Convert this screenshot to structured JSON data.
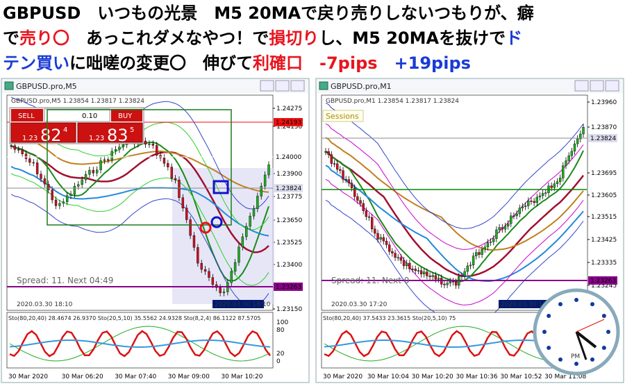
{
  "header": {
    "lines": [
      [
        {
          "text": "GBPUSD　いつもの光景　M5 20MAで戻り売りしないつもりが、癖"
        }
      ],
      [
        {
          "text": "で"
        },
        {
          "text": "売り〇"
        },
        {
          "text": "　あっこれダメなやつ！で"
        },
        {
          "text": "損切り"
        },
        {
          "text": "し、M5 20MAを抜けで"
        },
        {
          "text": "ド"
        }
      ],
      [
        {
          "text": "テン買い"
        },
        {
          "text": "に咄嗟の変更〇　伸びて"
        },
        {
          "text": "利確口"
        },
        {
          "text": "　"
        },
        {
          "text": "-7pips"
        },
        {
          "text": "　"
        },
        {
          "text": "+19pips"
        }
      ]
    ]
  },
  "left": {
    "title": "GBPUSD.pro,M5",
    "info": "GBPUSD.pro,M5 1.23854 1.23817 1.23824",
    "trade": {
      "sell": "SELL",
      "buy": "BUY",
      "lot": "0.10",
      "sell_big": "1.23",
      "sell_price": "82",
      "sell_frac": "4",
      "buy_big": "1.23",
      "buy_price": "83",
      "buy_frac": "5"
    },
    "price_ticks": [
      "1.24275",
      "1.24150",
      "1.23900",
      "1.23775",
      "1.23650",
      "1.23525",
      "1.23400",
      "1.23275",
      "1.23150"
    ],
    "price_marks": [
      "1.24193",
      "1.24000",
      "1.23824",
      "1.23263"
    ],
    "spread": "Spread: 11. Next 04:49",
    "date": "2020.03.30 18:10",
    "date_box": "2020.03.30 18:10",
    "sto": "Sto(80,20,40) 28.4674 26.9370 Sto(20,5,10) 35.5562 24.9328 Sto(8,2,4) 86.1122 87.5705",
    "sto_ticks": [
      "100",
      "80",
      "20",
      "0"
    ],
    "time": [
      "30 Mar 2020",
      "30 Mar 06:20",
      "30 Mar 07:40",
      "30 Mar 09:00",
      "30 Mar 10:20"
    ]
  },
  "right": {
    "title": "GBPUSD.pro,M1",
    "info": "GBPUSD.pro,M1 1.23854 1.23817 1.23824",
    "sessions": "Sessions",
    "price_ticks": [
      "1.23960",
      "1.23870",
      "1.23695",
      "1.23605",
      "1.23515",
      "1.23425",
      "1.23335",
      "1.23245"
    ],
    "price_marks": [
      "1.23824",
      "1.23263"
    ],
    "spread": "Spread: 11. Next 0",
    "date": "2020.03.30 17:20",
    "date_box": "2020.03.30 17:20",
    "sto": "Sto(80,20,40) 37.5433 23.3615 Sto(20,5,10) 75",
    "time": [
      "30 Mar 2020",
      "30 Mar 10:04",
      "30 Mar 10:20",
      "30 Mar 10:36",
      "30 Mar 10:52",
      "30 Mar 11:08"
    ],
    "clock": "PM"
  }
}
